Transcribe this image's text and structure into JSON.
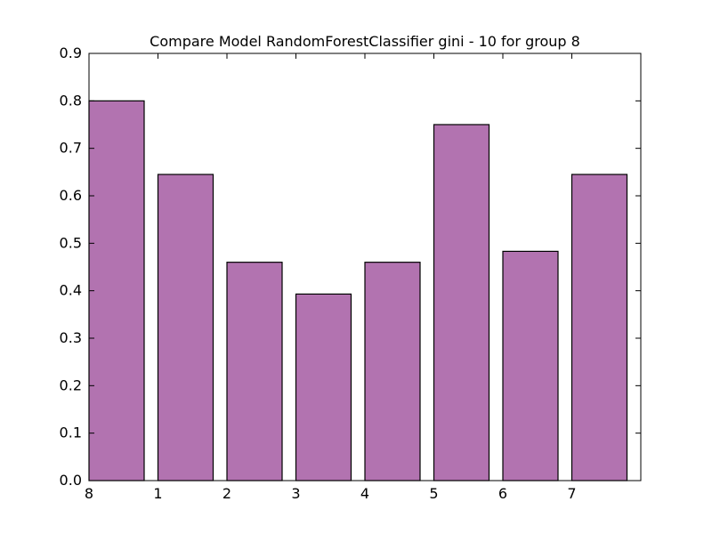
{
  "chart_data": {
    "type": "bar",
    "title": "Compare Model RandomForestClassifier gini - 10 for group 8",
    "categories": [
      "8",
      "1",
      "2",
      "3",
      "4",
      "5",
      "6",
      "7"
    ],
    "values": [
      0.8,
      0.645,
      0.46,
      0.393,
      0.46,
      0.75,
      0.483,
      0.645
    ],
    "xlabel": "",
    "ylabel": "",
    "ylim": [
      0.0,
      0.9
    ],
    "yticks": [
      "0.0",
      "0.1",
      "0.2",
      "0.3",
      "0.4",
      "0.5",
      "0.6",
      "0.7",
      "0.8",
      "0.9"
    ],
    "grid": false,
    "bar_color": "#b273b0",
    "edge_color": "#000000"
  }
}
